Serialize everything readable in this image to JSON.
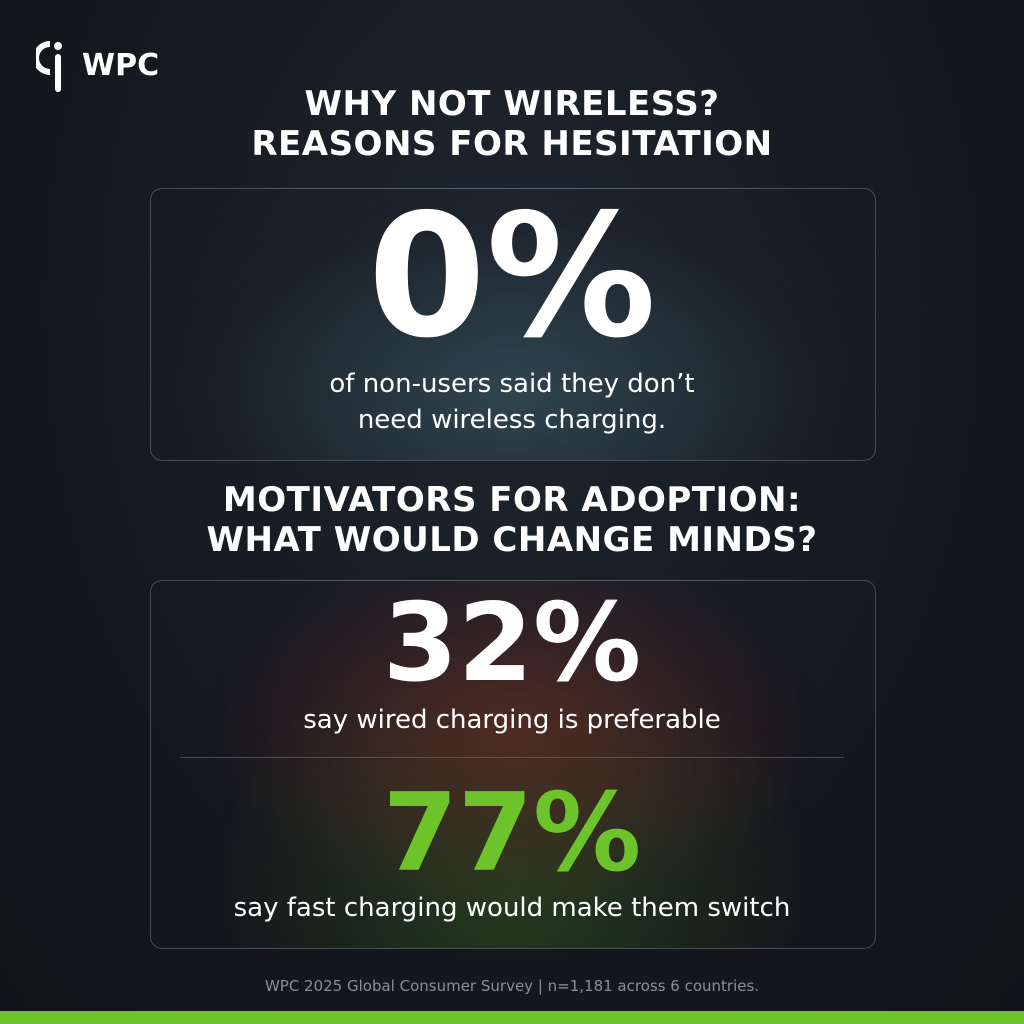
{
  "logo": {
    "text": "WPC"
  },
  "section1": {
    "title": [
      "WHY NOT WIRELESS?",
      "REASONS FOR HESITATION"
    ],
    "stat": "0%",
    "description": [
      "of non-users said they don’t",
      "need wireless charging."
    ]
  },
  "section2": {
    "title": [
      "MOTIVATORS FOR ADOPTION:",
      "WHAT WOULD CHANGE MINDS?"
    ],
    "stats": [
      {
        "stat": "32%",
        "description": "say wired charging is preferable"
      },
      {
        "stat": "77%",
        "description": "say fast charging would make them switch"
      }
    ]
  },
  "footer": "WPC 2025 Global Consumer Survey | n=1,181 across 6 countries."
}
